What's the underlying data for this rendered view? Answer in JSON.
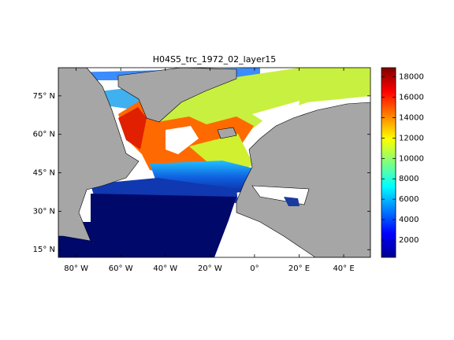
{
  "title": "H04S5_trc_1972_02_layer15",
  "map": {
    "xlim": [
      -88,
      52
    ],
    "ylim": [
      12,
      86
    ],
    "xticks": [
      {
        "value": -80,
        "label": "80° W"
      },
      {
        "value": -60,
        "label": "60° W"
      },
      {
        "value": -40,
        "label": "40° W"
      },
      {
        "value": -20,
        "label": "20° W"
      },
      {
        "value": 0,
        "label": "0°"
      },
      {
        "value": 20,
        "label": "20° E"
      },
      {
        "value": 40,
        "label": "40° E"
      }
    ],
    "yticks": [
      {
        "value": 15,
        "label": "15° N"
      },
      {
        "value": 30,
        "label": "30° N"
      },
      {
        "value": 45,
        "label": "45° N"
      },
      {
        "value": 60,
        "label": "60° N"
      },
      {
        "value": 75,
        "label": "75° N"
      }
    ]
  },
  "colorbar": {
    "colormap": "jet",
    "lim": [
      300,
      18900
    ],
    "ticks": [
      2000,
      4000,
      6000,
      8000,
      10000,
      12000,
      14000,
      16000,
      18000
    ]
  }
}
